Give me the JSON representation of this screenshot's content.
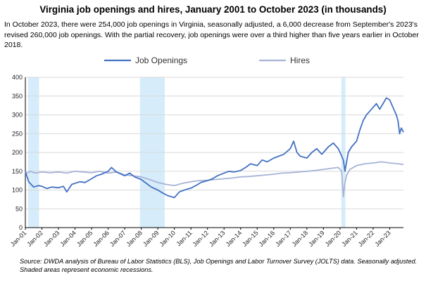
{
  "title": "Virginia job openings and hires, January 2001 to October 2023 (in thousands)",
  "subtitle": "In October 2023, there were 254,000 job openings in Virginia, seasonally adjusted, a 6,000 decrease from September's 2023's revised 260,000 job openings. With the partial recovery, job openings were over a third higher than five years earlier in October 2018.",
  "source": "Source: DWDA analysis of Bureau of Labor Statistics (BLS), Job Openings and Labor Turnover Survey (JOLTS) data. Seasonally adjusted. Shaded areas represent economic recessions.",
  "chart_data": {
    "type": "line",
    "title": "Virginia job openings and hires, January 2001 to October 2023 (in thousands)",
    "xlabel": "",
    "ylabel": "",
    "ylim": [
      0,
      400
    ],
    "yticks": [
      0,
      50,
      100,
      150,
      200,
      250,
      300,
      350,
      400
    ],
    "xlim": [
      2001.0,
      2023.833
    ],
    "xticks": [
      {
        "label": "Jan-01",
        "t": 2001
      },
      {
        "label": "Jan-02",
        "t": 2002
      },
      {
        "label": "Jan-03",
        "t": 2003
      },
      {
        "label": "Jan-04",
        "t": 2004
      },
      {
        "label": "Jan-05",
        "t": 2005
      },
      {
        "label": "Jan-06",
        "t": 2006
      },
      {
        "label": "Jan-07",
        "t": 2007
      },
      {
        "label": "Jan-08",
        "t": 2008
      },
      {
        "label": "Jan-09",
        "t": 2009
      },
      {
        "label": "Jan-10",
        "t": 2010
      },
      {
        "label": "Jan-11",
        "t": 2011
      },
      {
        "label": "Jan-12",
        "t": 2012
      },
      {
        "label": "Jan-13",
        "t": 2013
      },
      {
        "label": "Jan-14",
        "t": 2014
      },
      {
        "label": "Jan-15",
        "t": 2015
      },
      {
        "label": "Jan-16",
        "t": 2016
      },
      {
        "label": "Jan-17",
        "t": 2017
      },
      {
        "label": "Jan-18",
        "t": 2018
      },
      {
        "label": "Jan-19",
        "t": 2019
      },
      {
        "label": "Jan-20",
        "t": 2020
      },
      {
        "label": "Jan-21",
        "t": 2021
      },
      {
        "label": "Jan-22",
        "t": 2022
      },
      {
        "label": "Jan-23",
        "t": 2023
      }
    ],
    "recessions": [
      {
        "start": 2001.17,
        "end": 2001.83
      },
      {
        "start": 2007.92,
        "end": 2009.42
      },
      {
        "start": 2020.08,
        "end": 2020.33
      }
    ],
    "grid": true,
    "legend": "top",
    "series": [
      {
        "name": "Job Openings",
        "color": "#4472c4",
        "points": [
          [
            2001.0,
            150
          ],
          [
            2001.2,
            122
          ],
          [
            2001.5,
            108
          ],
          [
            2001.8,
            112
          ],
          [
            2002.0,
            110
          ],
          [
            2002.3,
            104
          ],
          [
            2002.6,
            108
          ],
          [
            2003.0,
            106
          ],
          [
            2003.3,
            110
          ],
          [
            2003.5,
            95
          ],
          [
            2003.8,
            115
          ],
          [
            2004.0,
            118
          ],
          [
            2004.3,
            122
          ],
          [
            2004.6,
            120
          ],
          [
            2005.0,
            130
          ],
          [
            2005.3,
            138
          ],
          [
            2005.6,
            142
          ],
          [
            2006.0,
            150
          ],
          [
            2006.2,
            160
          ],
          [
            2006.5,
            148
          ],
          [
            2006.8,
            142
          ],
          [
            2007.0,
            138
          ],
          [
            2007.3,
            145
          ],
          [
            2007.6,
            135
          ],
          [
            2008.0,
            128
          ],
          [
            2008.3,
            118
          ],
          [
            2008.6,
            108
          ],
          [
            2009.0,
            100
          ],
          [
            2009.3,
            92
          ],
          [
            2009.6,
            85
          ],
          [
            2010.0,
            80
          ],
          [
            2010.3,
            95
          ],
          [
            2010.6,
            100
          ],
          [
            2011.0,
            105
          ],
          [
            2011.3,
            112
          ],
          [
            2011.6,
            120
          ],
          [
            2012.0,
            125
          ],
          [
            2012.3,
            130
          ],
          [
            2012.6,
            138
          ],
          [
            2013.0,
            145
          ],
          [
            2013.3,
            150
          ],
          [
            2013.6,
            148
          ],
          [
            2014.0,
            152
          ],
          [
            2014.3,
            160
          ],
          [
            2014.6,
            170
          ],
          [
            2015.0,
            165
          ],
          [
            2015.3,
            180
          ],
          [
            2015.6,
            175
          ],
          [
            2016.0,
            185
          ],
          [
            2016.3,
            190
          ],
          [
            2016.6,
            195
          ],
          [
            2017.0,
            210
          ],
          [
            2017.2,
            230
          ],
          [
            2017.4,
            200
          ],
          [
            2017.6,
            190
          ],
          [
            2018.0,
            185
          ],
          [
            2018.3,
            200
          ],
          [
            2018.6,
            210
          ],
          [
            2018.9,
            195
          ],
          [
            2019.0,
            200
          ],
          [
            2019.3,
            215
          ],
          [
            2019.6,
            225
          ],
          [
            2019.9,
            210
          ],
          [
            2020.0,
            200
          ],
          [
            2020.2,
            180
          ],
          [
            2020.3,
            150
          ],
          [
            2020.5,
            200
          ],
          [
            2020.7,
            215
          ],
          [
            2021.0,
            230
          ],
          [
            2021.2,
            260
          ],
          [
            2021.4,
            285
          ],
          [
            2021.6,
            300
          ],
          [
            2021.8,
            310
          ],
          [
            2022.0,
            320
          ],
          [
            2022.2,
            330
          ],
          [
            2022.4,
            315
          ],
          [
            2022.6,
            330
          ],
          [
            2022.8,
            345
          ],
          [
            2023.0,
            340
          ],
          [
            2023.2,
            320
          ],
          [
            2023.4,
            300
          ],
          [
            2023.5,
            285
          ],
          [
            2023.6,
            250
          ],
          [
            2023.7,
            265
          ],
          [
            2023.833,
            254
          ]
        ]
      },
      {
        "name": "Hires",
        "color": "#a6b3d6",
        "points": [
          [
            2001.0,
            142
          ],
          [
            2001.3,
            150
          ],
          [
            2001.6,
            145
          ],
          [
            2002.0,
            148
          ],
          [
            2002.5,
            146
          ],
          [
            2003.0,
            148
          ],
          [
            2003.5,
            145
          ],
          [
            2004.0,
            150
          ],
          [
            2004.5,
            148
          ],
          [
            2005.0,
            146
          ],
          [
            2005.5,
            150
          ],
          [
            2006.0,
            145
          ],
          [
            2006.5,
            148
          ],
          [
            2007.0,
            140
          ],
          [
            2007.5,
            138
          ],
          [
            2008.0,
            135
          ],
          [
            2008.5,
            128
          ],
          [
            2009.0,
            120
          ],
          [
            2009.5,
            115
          ],
          [
            2010.0,
            112
          ],
          [
            2010.5,
            118
          ],
          [
            2011.0,
            122
          ],
          [
            2011.5,
            125
          ],
          [
            2012.0,
            126
          ],
          [
            2012.5,
            128
          ],
          [
            2013.0,
            130
          ],
          [
            2013.5,
            132
          ],
          [
            2014.0,
            135
          ],
          [
            2014.5,
            136
          ],
          [
            2015.0,
            138
          ],
          [
            2015.5,
            140
          ],
          [
            2016.0,
            142
          ],
          [
            2016.5,
            145
          ],
          [
            2017.0,
            146
          ],
          [
            2017.5,
            148
          ],
          [
            2018.0,
            150
          ],
          [
            2018.5,
            152
          ],
          [
            2019.0,
            155
          ],
          [
            2019.5,
            158
          ],
          [
            2019.9,
            160
          ],
          [
            2020.1,
            150
          ],
          [
            2020.2,
            82
          ],
          [
            2020.3,
            120
          ],
          [
            2020.4,
            140
          ],
          [
            2020.6,
            155
          ],
          [
            2021.0,
            165
          ],
          [
            2021.5,
            170
          ],
          [
            2022.0,
            172
          ],
          [
            2022.5,
            175
          ],
          [
            2023.0,
            172
          ],
          [
            2023.5,
            170
          ],
          [
            2023.833,
            168
          ]
        ]
      }
    ]
  }
}
